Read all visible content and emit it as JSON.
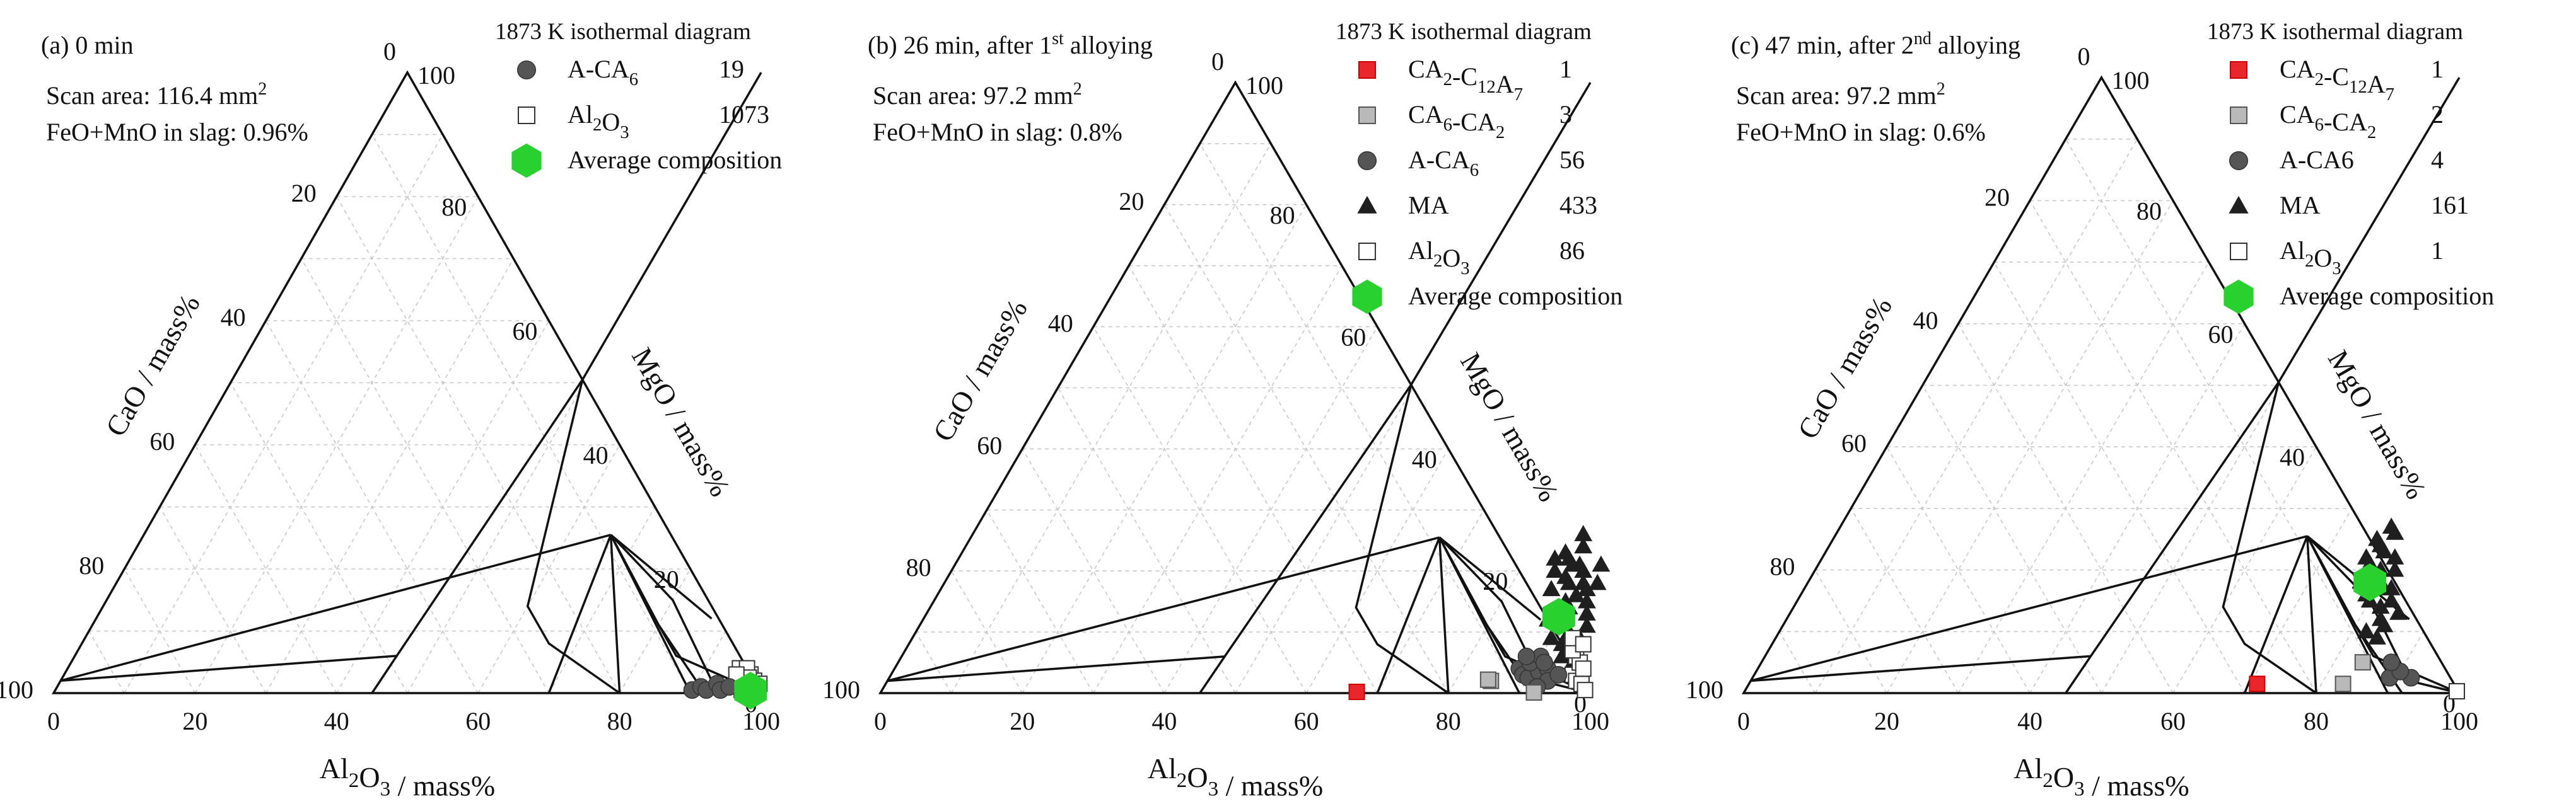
{
  "figure": {
    "panels": [
      {
        "label": "(a) 0 min",
        "header": "1873 K isothermal diagram",
        "info": [
          "Scan area: 116.4 mm²",
          "FeO+MnO in slag: 0.96%"
        ]
      },
      {
        "label": "(b) 26 min, after 1st alloying",
        "header": "1873 K isothermal diagram",
        "info": [
          "Scan area: 97.2 mm²",
          "FeO+MnO in slag: 0.8%"
        ]
      },
      {
        "label": "(c) 47 min, after 2nd alloying",
        "header": "1873 K isothermal diagram",
        "info": [
          "Scan area: 97.2 mm²",
          "FeO+MnO in slag: 0.6%"
        ]
      }
    ]
  },
  "colors": {
    "ca2_c12a7": "#e8262b",
    "ca6_ca2": "#b9b9b9",
    "a_ca6": "#555555",
    "ma": "#1f1f1f",
    "al2o3": "#ffffff",
    "average": "#29d12f",
    "grid": "#c8c8c8",
    "line": "#111111"
  },
  "chart_data": [
    {
      "type": "scatter",
      "title": "(a) 0 min",
      "axes": {
        "bottom": "Al2O3 / mass%",
        "left": "CaO / mass%",
        "right": "MgO / mass%",
        "range": [
          0,
          100
        ],
        "ticks": [
          0,
          20,
          40,
          60,
          80,
          100
        ]
      },
      "legend": [
        {
          "label": "A-CA6",
          "count": "19",
          "marker": "circle",
          "color": "#555555"
        },
        {
          "label": "Al2O3",
          "count": "1073",
          "marker": "square-open",
          "color": "#ffffff"
        },
        {
          "label": "Average composition",
          "count": "",
          "marker": "hexagon",
          "color": "#29d12f"
        }
      ],
      "series": [
        {
          "name": "Al2O3",
          "points": [
            [
              99,
              0.5
            ],
            [
              98,
              1
            ],
            [
              97,
              1.5
            ],
            [
              96,
              2
            ],
            [
              97,
              3
            ],
            [
              95,
              4
            ],
            [
              96,
              2.5
            ],
            [
              98,
              2
            ],
            [
              99,
              1.5
            ],
            [
              96,
              4
            ],
            [
              97,
              2.5
            ],
            [
              95,
              3
            ],
            [
              98,
              0.5
            ],
            [
              97,
              0.5
            ]
          ]
        },
        {
          "name": "A-CA6",
          "points": [
            [
              90,
              0.5
            ],
            [
              91,
              1
            ],
            [
              92,
              0.5
            ],
            [
              93,
              1.5
            ],
            [
              94,
              0.5
            ],
            [
              95,
              1
            ]
          ]
        },
        {
          "name": "Average composition",
          "points": [
            [
              98.3,
              0.4
            ]
          ]
        }
      ]
    },
    {
      "type": "scatter",
      "title": "(b) 26 min, after 1st alloying",
      "axes": {
        "bottom": "Al2O3 / mass%",
        "left": "CaO / mass%",
        "right": "MgO / mass%",
        "range": [
          0,
          100
        ],
        "ticks": [
          0,
          20,
          40,
          60,
          80,
          100
        ]
      },
      "legend": [
        {
          "label": "CA2-C12A7",
          "count": "1",
          "marker": "square",
          "color": "#e8262b"
        },
        {
          "label": "CA6-CA2",
          "count": "3",
          "marker": "square",
          "color": "#b9b9b9"
        },
        {
          "label": "A-CA6",
          "count": "56",
          "marker": "circle",
          "color": "#555555"
        },
        {
          "label": "MA",
          "count": "433",
          "marker": "triangle",
          "color": "#1f1f1f"
        },
        {
          "label": "Al2O3",
          "count": "86",
          "marker": "square-open",
          "color": "#ffffff"
        },
        {
          "label": "Average composition",
          "count": "",
          "marker": "hexagon",
          "color": "#29d12f"
        }
      ],
      "series": [
        {
          "name": "MA",
          "points": [
            [
              84,
              22
            ],
            [
              85,
              23
            ],
            [
              86,
              22
            ],
            [
              85,
              20
            ],
            [
              87,
              19
            ],
            [
              88,
              18
            ],
            [
              86,
              17
            ],
            [
              89,
              15
            ],
            [
              90,
              14
            ],
            [
              88,
              12
            ],
            [
              91,
              11
            ],
            [
              92,
              10
            ],
            [
              90,
              16
            ],
            [
              87,
              24
            ],
            [
              86,
              26
            ],
            [
              88,
              21
            ],
            [
              89,
              20
            ],
            [
              91,
              17
            ],
            [
              92,
              15
            ],
            [
              93,
              13
            ],
            [
              94,
              9
            ],
            [
              93,
              6
            ],
            [
              95,
              5
            ],
            [
              92,
              8
            ],
            [
              90,
              9
            ],
            [
              89,
              13
            ],
            [
              91,
              21
            ],
            [
              90,
              18
            ],
            [
              94,
              11
            ],
            [
              92,
              18
            ],
            [
              87,
              21
            ]
          ]
        },
        {
          "name": "Al2O3",
          "points": [
            [
              96,
              3
            ],
            [
              97,
              2
            ],
            [
              95,
              6
            ],
            [
              96,
              5
            ],
            [
              94,
              7
            ],
            [
              97,
              4
            ],
            [
              98,
              1.5
            ],
            [
              99,
              0.5
            ],
            [
              93,
              9
            ],
            [
              95,
              8
            ]
          ]
        },
        {
          "name": "A-CA6",
          "points": [
            [
              88,
              4
            ],
            [
              89,
              3
            ],
            [
              90,
              2.5
            ],
            [
              91,
              3.5
            ],
            [
              89,
              5
            ],
            [
              90,
              6
            ],
            [
              92,
              4
            ],
            [
              93,
              2
            ],
            [
              88,
              6
            ],
            [
              91,
              5
            ],
            [
              94,
              3
            ],
            [
              92,
              1
            ]
          ]
        },
        {
          "name": "CA6-CA2",
          "points": [
            [
              85,
              2
            ],
            [
              84.5,
              2.2
            ],
            [
              92,
              0.1
            ]
          ]
        },
        {
          "name": "CA2-C12A7",
          "points": [
            [
              67,
              0.2
            ]
          ]
        },
        {
          "name": "Average composition",
          "points": [
            [
              89.3,
              12.5
            ]
          ]
        }
      ]
    },
    {
      "type": "scatter",
      "title": "(c) 47 min, after 2nd alloying",
      "axes": {
        "bottom": "Al2O3 / mass%",
        "left": "CaO / mass%",
        "right": "MgO / mass%",
        "range": [
          0,
          100
        ],
        "ticks": [
          0,
          20,
          40,
          60,
          80,
          100
        ]
      },
      "legend": [
        {
          "label": "CA2-C12A7",
          "count": "1",
          "marker": "square",
          "color": "#e8262b"
        },
        {
          "label": "CA6-CA2",
          "count": "2",
          "marker": "square",
          "color": "#b9b9b9"
        },
        {
          "label": "A-CA6",
          "count": "4",
          "marker": "circle",
          "color": "#555555"
        },
        {
          "label": "MA",
          "count": "161",
          "marker": "triangle",
          "color": "#1f1f1f"
        },
        {
          "label": "Al2O3",
          "count": "1",
          "marker": "square-open",
          "color": "#ffffff"
        },
        {
          "label": "Average composition",
          "count": "",
          "marker": "hexagon",
          "color": "#29d12f"
        }
      ],
      "series": [
        {
          "name": "MA",
          "points": [
            [
              76,
              25
            ],
            [
              77,
              24
            ],
            [
              76,
              22
            ],
            [
              78,
              23
            ],
            [
              77,
              21
            ],
            [
              78,
              19
            ],
            [
              79,
              20
            ],
            [
              80,
              18
            ],
            [
              81,
              17
            ],
            [
              80,
              15
            ],
            [
              82,
              14
            ],
            [
              83,
              12
            ],
            [
              82,
              10
            ],
            [
              84,
              9
            ],
            [
              78,
              26
            ],
            [
              80,
              22
            ],
            [
              81,
              20
            ],
            [
              82,
              17
            ],
            [
              79,
              16
            ],
            [
              83,
              15
            ],
            [
              84,
              11
            ],
            [
              85,
              13
            ],
            [
              77,
              27
            ]
          ]
        },
        {
          "name": "A-CA6",
          "points": [
            [
              89,
              2.5
            ],
            [
              92,
              2.5
            ],
            [
              90,
              3.5
            ],
            [
              88,
              5
            ]
          ]
        },
        {
          "name": "CA6-CA2",
          "points": [
            [
              84,
              5
            ],
            [
              83,
              1.5
            ]
          ]
        },
        {
          "name": "Al2O3",
          "points": [
            [
              99.5,
              0.3
            ]
          ]
        },
        {
          "name": "CA2-C12A7",
          "points": [
            [
              71,
              1.5
            ]
          ]
        },
        {
          "name": "Average composition",
          "points": [
            [
              78.5,
              18
            ]
          ]
        }
      ]
    }
  ]
}
